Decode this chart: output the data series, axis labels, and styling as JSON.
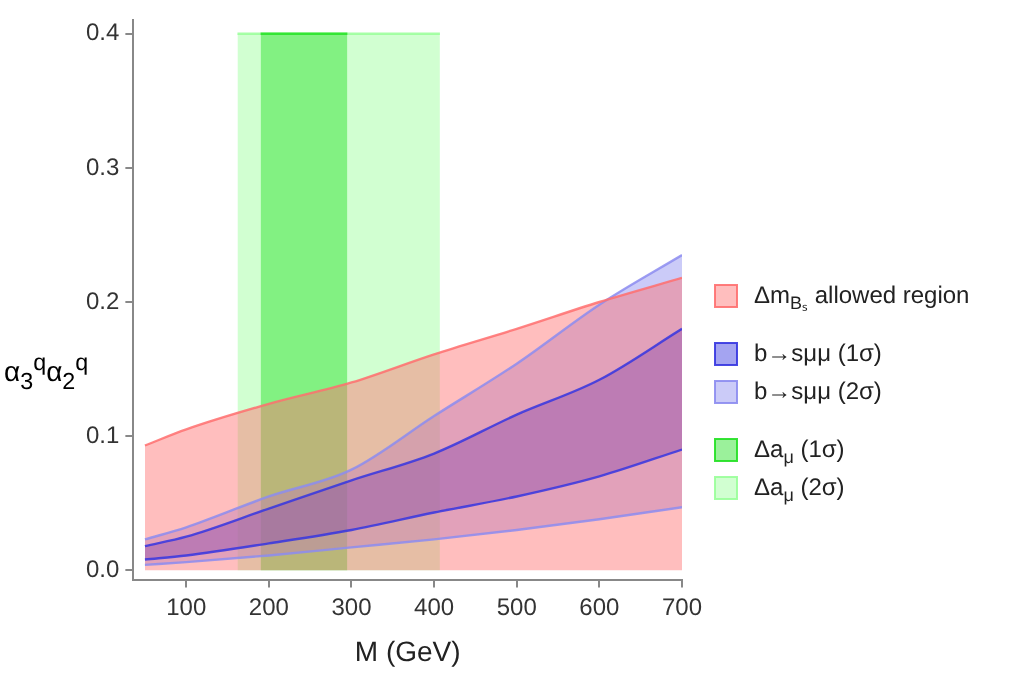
{
  "chart_data": {
    "type": "area",
    "xlabel": "M (GeV)",
    "ylabel": "α$_{3}$$^{q}$α$_{2}$$^{q}$",
    "x": [
      50,
      100,
      200,
      300,
      400,
      500,
      600,
      700
    ],
    "series": [
      {
        "name": "Δm$_{Bₛ}$ allowed region",
        "color": "#ff6f6f",
        "values": [
          0.093,
          0.105,
          0.124,
          0.14,
          0.161,
          0.18,
          0.2,
          0.218
        ]
      },
      {
        "name": "b→sμμ (1σ)",
        "color": "#3535e0",
        "values": [
          0.018,
          0.025,
          0.046,
          0.067,
          0.087,
          0.116,
          0.142,
          0.18
        ]
      },
      {
        "type": "line",
        "color": "#3535e0",
        "values": [
          0.008,
          0.011,
          0.02,
          0.03,
          0.043,
          0.055,
          0.07,
          0.09
        ]
      },
      {
        "name": "b→sμμ (2σ)",
        "color": "#8c8cf0",
        "values": [
          0.023,
          0.032,
          0.055,
          0.075,
          0.115,
          0.154,
          0.198,
          0.235
        ]
      },
      {
        "type": "line",
        "color": "#8c8cf0",
        "values": [
          0.004,
          0.006,
          0.011,
          0.017,
          0.023,
          0.03,
          0.038,
          0.047
        ]
      },
      {
        "name": "Δa$_{μ}$ (1σ)",
        "color": "#22e022",
        "x": [
          190,
          295
        ],
        "values": [
          0.4,
          0.4
        ]
      },
      {
        "name": "Δa$_{μ}$ (2σ)",
        "color": "#99ff99",
        "x": [
          162,
          407
        ],
        "values": [
          0.4,
          0.4
        ]
      }
    ],
    "xlim": [
      36,
      700
    ],
    "ylim": [
      -0.007,
      0.41
    ],
    "xticks": [
      100,
      200,
      300,
      400,
      500,
      600,
      700
    ],
    "yticks": [
      {
        "value": 0,
        "label": "0.0"
      },
      {
        "value": 0.1,
        "label": "0.1"
      },
      {
        "value": 0.2,
        "label": "0.2"
      },
      {
        "value": 0.3,
        "label": "0.3"
      },
      {
        "value": 0.4,
        "label": "0.4"
      }
    ],
    "grid": false,
    "legend": "right"
  }
}
